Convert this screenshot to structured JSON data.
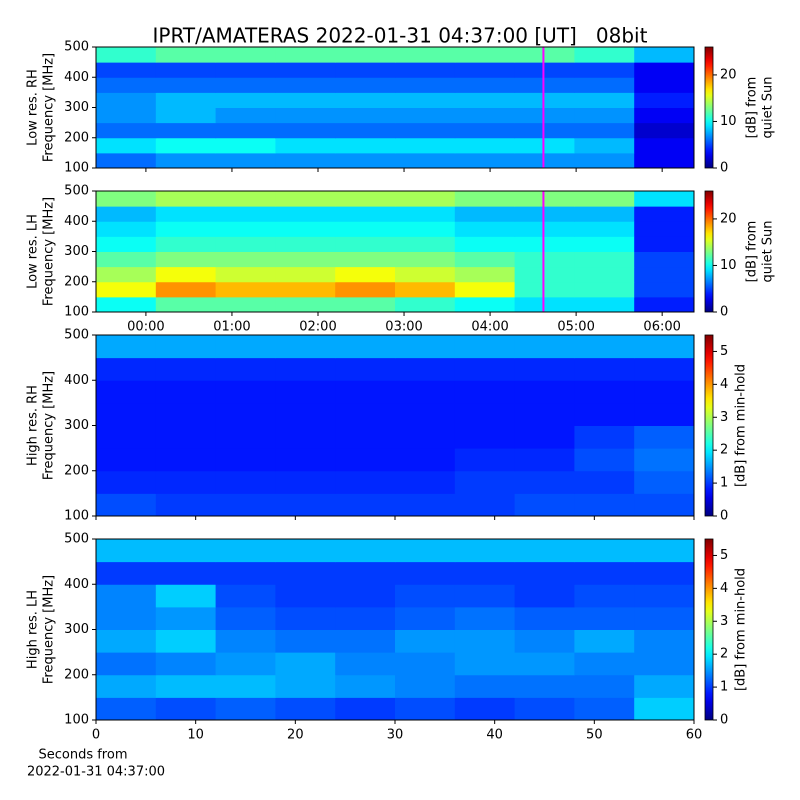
{
  "title": "IPRT/AMATERAS 2022-01-31 04:37:00 [UT]   08bit",
  "xlabel_lines": [
    "Seconds from",
    "2022-01-31 04:37:00"
  ],
  "chart_data": [
    {
      "type": "heatmap",
      "ylabel": [
        "Low res. RH",
        "Frequency [MHz]"
      ],
      "colorbar_label": [
        "[dB] from",
        "quiet Sun"
      ],
      "xlim": [
        -0.58,
        6.37
      ],
      "xticks": [
        0,
        1,
        2,
        3,
        4,
        5,
        6
      ],
      "xtick_labels": false,
      "ylim": [
        100,
        500
      ],
      "yticks": [
        100,
        200,
        300,
        400,
        500
      ],
      "clim": [
        0,
        26
      ],
      "cticks": [
        0,
        10,
        20
      ],
      "marker_x": 4.62,
      "marker_color": "#ff00ff",
      "z": [
        [
          6,
          7,
          7,
          7,
          7,
          7,
          7,
          7,
          7,
          3
        ],
        [
          9,
          10,
          10,
          9,
          9,
          9,
          9,
          9,
          8,
          3
        ],
        [
          6,
          6,
          6,
          6,
          6,
          6,
          6,
          6,
          6,
          2
        ],
        [
          7,
          8,
          7,
          7,
          7,
          7,
          7,
          7,
          7,
          3
        ],
        [
          7,
          8,
          8,
          8,
          8,
          8,
          8,
          8,
          8,
          4
        ],
        [
          6,
          6,
          6,
          6,
          6,
          6,
          6,
          6,
          6,
          3
        ],
        [
          5,
          5,
          5,
          5,
          5,
          5,
          5,
          5,
          5,
          3
        ],
        [
          11,
          12,
          12,
          12,
          12,
          12,
          12,
          12,
          11,
          8
        ]
      ]
    },
    {
      "type": "heatmap",
      "ylabel": [
        "Low res. LH",
        "Frequency [MHz]"
      ],
      "colorbar_label": [
        "[dB] from",
        "quiet Sun"
      ],
      "xlim": [
        -0.58,
        6.37
      ],
      "xticks": [
        {
          "value": 0,
          "label": "00:00"
        },
        {
          "value": 1,
          "label": "01:00"
        },
        {
          "value": 2,
          "label": "02:00"
        },
        {
          "value": 3,
          "label": "03:00"
        },
        {
          "value": 4,
          "label": "04:00"
        },
        {
          "value": 5,
          "label": "05:00"
        },
        {
          "value": 6,
          "label": "06:00"
        }
      ],
      "xtick_labels": true,
      "ylim": [
        100,
        500
      ],
      "yticks": [
        100,
        200,
        300,
        400,
        500
      ],
      "clim": [
        0,
        26
      ],
      "cticks": [
        0,
        10,
        20
      ],
      "marker_x": 4.62,
      "marker_color": "#ff00ff",
      "z": [
        [
          10,
          12,
          12,
          12,
          12,
          11,
          10,
          9,
          9,
          4
        ],
        [
          16,
          19,
          18,
          18,
          19,
          18,
          16,
          11,
          11,
          5
        ],
        [
          14,
          16,
          15,
          15,
          16,
          15,
          14,
          11,
          11,
          5
        ],
        [
          12,
          13,
          13,
          13,
          13,
          13,
          12,
          11,
          11,
          5
        ],
        [
          10,
          11,
          11,
          11,
          11,
          11,
          10,
          10,
          10,
          4
        ],
        [
          9,
          10,
          10,
          10,
          10,
          10,
          9,
          9,
          9,
          4
        ],
        [
          8,
          9,
          9,
          9,
          9,
          9,
          8,
          8,
          8,
          4
        ],
        [
          13,
          14,
          14,
          14,
          14,
          14,
          13,
          13,
          13,
          9
        ]
      ]
    },
    {
      "type": "heatmap",
      "ylabel": [
        "High res. RH",
        "Frequency [MHz]"
      ],
      "colorbar_label": [
        "[dB] from min-hold"
      ],
      "xlim": [
        0,
        60
      ],
      "xticks": [
        0,
        10,
        20,
        30,
        40,
        50,
        60
      ],
      "xtick_labels": false,
      "ylim": [
        100,
        500
      ],
      "yticks": [
        100,
        200,
        300,
        400,
        500
      ],
      "clim": [
        0,
        5.5
      ],
      "cticks": [
        0,
        1,
        2,
        3,
        4,
        5
      ],
      "z": [
        [
          1.1,
          1.0,
          1.0,
          1.0,
          1.0,
          1.0,
          1.0,
          1.1,
          1.1,
          1.1
        ],
        [
          0.9,
          0.9,
          0.9,
          0.9,
          0.9,
          0.9,
          1.0,
          1.0,
          1.0,
          1.2
        ],
        [
          0.8,
          0.8,
          0.8,
          0.8,
          0.8,
          0.8,
          0.9,
          0.9,
          1.1,
          1.3
        ],
        [
          0.8,
          0.8,
          0.8,
          0.8,
          0.8,
          0.8,
          0.8,
          0.8,
          1.0,
          1.2
        ],
        [
          0.8,
          0.8,
          0.8,
          0.8,
          0.8,
          0.8,
          0.8,
          0.8,
          0.8,
          0.8
        ],
        [
          0.8,
          0.8,
          0.8,
          0.8,
          0.8,
          0.8,
          0.8,
          0.8,
          0.8,
          0.8
        ],
        [
          0.9,
          0.9,
          0.9,
          0.9,
          0.9,
          0.9,
          0.9,
          0.9,
          0.9,
          0.9
        ],
        [
          1.6,
          1.6,
          1.6,
          1.6,
          1.6,
          1.6,
          1.6,
          1.6,
          1.6,
          1.6
        ]
      ]
    },
    {
      "type": "heatmap",
      "ylabel": [
        "High res. LH",
        "Frequency [MHz]"
      ],
      "colorbar_label": [
        "[dB] from min-hold"
      ],
      "xlim": [
        0,
        60
      ],
      "xticks": [
        0,
        10,
        20,
        30,
        40,
        50,
        60
      ],
      "xtick_labels": true,
      "ylim": [
        100,
        500
      ],
      "yticks": [
        100,
        200,
        300,
        400,
        500
      ],
      "clim": [
        0,
        5.5
      ],
      "cticks": [
        0,
        1,
        2,
        3,
        4,
        5
      ],
      "z": [
        [
          1.2,
          1.1,
          1.2,
          1.1,
          1.0,
          1.1,
          1.0,
          1.1,
          1.2,
          1.8
        ],
        [
          1.6,
          1.7,
          1.7,
          1.6,
          1.5,
          1.4,
          1.3,
          1.3,
          1.3,
          1.6
        ],
        [
          1.3,
          1.4,
          1.5,
          1.6,
          1.4,
          1.4,
          1.5,
          1.5,
          1.4,
          1.4
        ],
        [
          1.6,
          1.8,
          1.4,
          1.3,
          1.3,
          1.5,
          1.5,
          1.4,
          1.6,
          1.4
        ],
        [
          1.4,
          1.5,
          1.2,
          1.1,
          1.1,
          1.2,
          1.3,
          1.2,
          1.2,
          1.2
        ],
        [
          1.4,
          1.8,
          1.1,
          1.0,
          1.0,
          1.1,
          1.1,
          1.0,
          1.1,
          1.1
        ],
        [
          1.0,
          1.0,
          1.0,
          1.0,
          1.0,
          1.0,
          1.0,
          1.0,
          1.0,
          1.0
        ],
        [
          1.7,
          1.7,
          1.7,
          1.7,
          1.7,
          1.7,
          1.7,
          1.7,
          1.7,
          1.7
        ]
      ]
    }
  ]
}
